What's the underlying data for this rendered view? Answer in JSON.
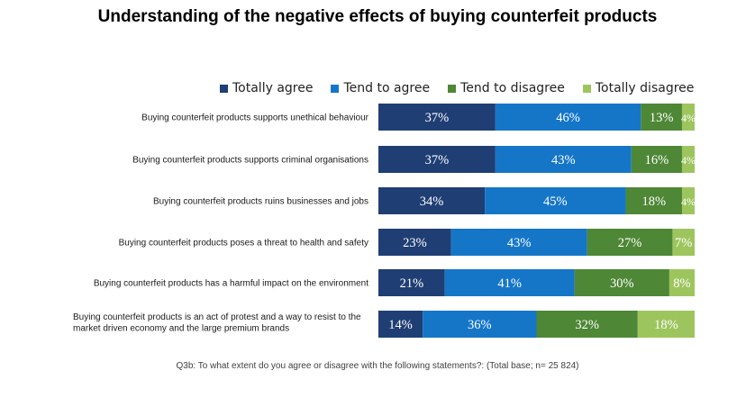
{
  "chart_data": {
    "type": "bar",
    "orientation": "horizontal",
    "stacked": true,
    "title": "Understanding of the negative effects of buying counterfeit products",
    "legend_position": "top",
    "grid": false,
    "xlim": [
      0,
      100
    ],
    "categories": [
      "Buying counterfeit products supports unethical behaviour",
      "Buying counterfeit products supports criminal organisations",
      "Buying counterfeit products ruins businesses and jobs",
      "Buying counterfeit products poses a threat to health and safety",
      "Buying counterfeit products has a harmful impact on the environment",
      "Buying counterfeit products is an act of protest and a way to resist to the market driven economy and the large premium brands"
    ],
    "series": [
      {
        "name": "Totally agree",
        "color": "#1f3e74",
        "values": [
          37,
          37,
          34,
          23,
          21,
          14
        ]
      },
      {
        "name": "Tend to agree",
        "color": "#1576c8",
        "values": [
          46,
          43,
          45,
          43,
          41,
          36
        ]
      },
      {
        "name": "Tend to disagree",
        "color": "#4e8736",
        "values": [
          13,
          16,
          18,
          27,
          30,
          32
        ]
      },
      {
        "name": "Totally disagree",
        "color": "#9dc55d",
        "values": [
          4,
          4,
          4,
          7,
          8,
          18
        ]
      }
    ],
    "data_labels": [
      [
        "37%",
        "37%",
        "34%",
        "23%",
        "21%",
        "14%"
      ],
      [
        "46%",
        "43%",
        "45%",
        "43%",
        "41%",
        "36%"
      ],
      [
        "13%",
        "16%",
        "18%",
        "27%",
        "30%",
        "32%"
      ],
      [
        "4%",
        "4%",
        "4%",
        "7%",
        "8%",
        "18%"
      ]
    ],
    "footnote": "Q3b:  To what extent do you agree or disagree with the following statements?: (Total base; n= 25 824)"
  }
}
